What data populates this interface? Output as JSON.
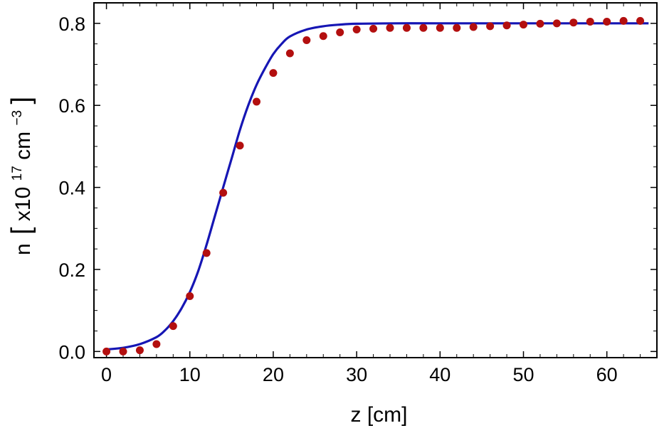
{
  "chart_data": {
    "type": "scatter",
    "title": "",
    "xlabel": "z [cm]",
    "ylabel": {
      "prefix": "n",
      "bracket_open": "[",
      "mult": "x10",
      "exp1": "17",
      "unit": "cm",
      "exp2": "−3",
      "bracket_close": "]"
    },
    "xlim": [
      -1.5,
      66
    ],
    "ylim": [
      -0.015,
      0.85
    ],
    "x_ticks": [
      0,
      10,
      20,
      30,
      40,
      50,
      60
    ],
    "x_tick_labels": [
      "0",
      "10",
      "20",
      "30",
      "40",
      "50",
      "60"
    ],
    "y_ticks": [
      0.0,
      0.2,
      0.4,
      0.6,
      0.8
    ],
    "y_tick_labels": [
      "0.0",
      "0.2",
      "0.4",
      "0.6",
      "0.8"
    ],
    "grid": false,
    "legend": "none",
    "series": [
      {
        "kind": "points",
        "color": "#b30f0f",
        "x": [
          0,
          2,
          4,
          6,
          8,
          10,
          12,
          14,
          16,
          18,
          20,
          22,
          24,
          26,
          28,
          30,
          32,
          34,
          36,
          38,
          40,
          42,
          44,
          46,
          48,
          50,
          52,
          54,
          56,
          58,
          60,
          62,
          64
        ],
        "y": [
          0.0,
          0.0,
          0.003,
          0.018,
          0.062,
          0.135,
          0.24,
          0.387,
          0.502,
          0.609,
          0.679,
          0.727,
          0.759,
          0.769,
          0.778,
          0.785,
          0.787,
          0.789,
          0.789,
          0.789,
          0.789,
          0.789,
          0.791,
          0.793,
          0.795,
          0.797,
          0.799,
          0.8,
          0.802,
          0.804,
          0.804,
          0.806,
          0.806
        ]
      },
      {
        "kind": "line",
        "color": "#1616b4",
        "x": [
          0,
          2,
          4,
          6,
          7,
          8,
          9,
          10,
          11,
          12,
          13,
          14,
          15,
          16,
          17,
          18,
          19,
          20,
          21,
          22,
          24,
          26,
          28,
          30,
          35,
          40,
          50,
          65
        ],
        "y": [
          0.005,
          0.009,
          0.018,
          0.035,
          0.051,
          0.074,
          0.105,
          0.145,
          0.196,
          0.26,
          0.33,
          0.4,
          0.47,
          0.54,
          0.6,
          0.65,
          0.69,
          0.725,
          0.75,
          0.768,
          0.785,
          0.793,
          0.797,
          0.799,
          0.8,
          0.8,
          0.8,
          0.8
        ]
      }
    ]
  }
}
